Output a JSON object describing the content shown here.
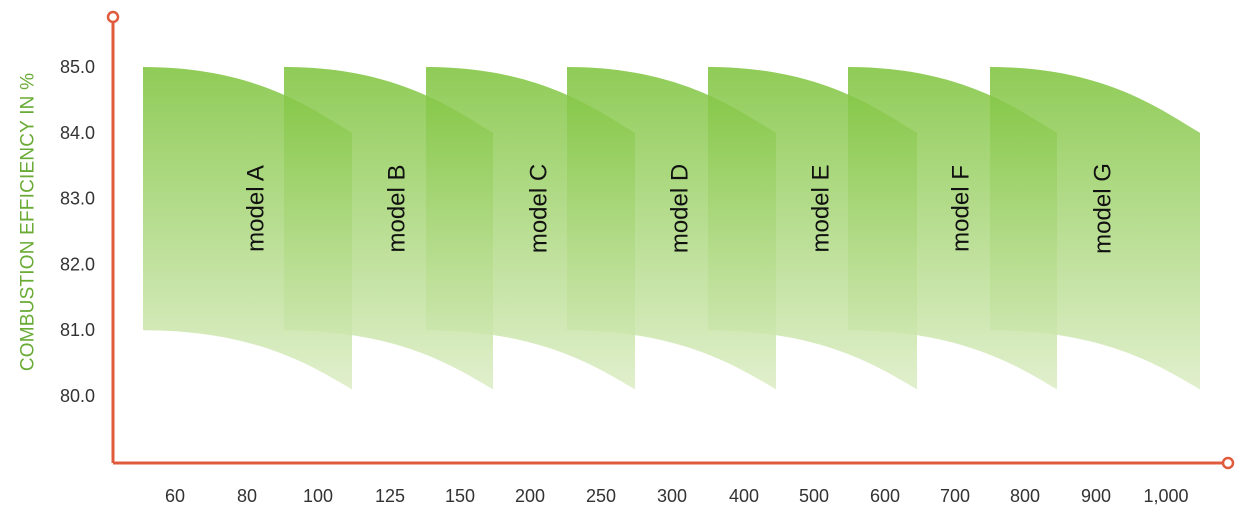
{
  "chart_data": {
    "type": "area",
    "title": "",
    "ylabel": "COMBUSTION EFFICIENCY IN %",
    "xlabel": "",
    "x_categories": [
      "60",
      "80",
      "100",
      "125",
      "150",
      "200",
      "250",
      "300",
      "400",
      "500",
      "600",
      "700",
      "800",
      "900",
      "1,000"
    ],
    "y_ticks": [
      "85.0",
      "84.0",
      "83.0",
      "82.0",
      "81.0",
      "80.0"
    ],
    "ylim": [
      79.0,
      86.0
    ],
    "series": [
      {
        "name": "model A",
        "x_start": "60",
        "x_end": "100",
        "efficiency_max_start": 85.0,
        "efficiency_max_end": 84.0,
        "efficiency_min_start": 81.0,
        "efficiency_min_end": 80.1
      },
      {
        "name": "model B",
        "x_start": "100",
        "x_end": "150",
        "efficiency_max_start": 85.0,
        "efficiency_max_end": 84.0,
        "efficiency_min_start": 81.0,
        "efficiency_min_end": 80.1
      },
      {
        "name": "model C",
        "x_start": "150",
        "x_end": "250",
        "efficiency_max_start": 85.0,
        "efficiency_max_end": 84.0,
        "efficiency_min_start": 81.0,
        "efficiency_min_end": 80.1
      },
      {
        "name": "model D",
        "x_start": "250",
        "x_end": "400",
        "efficiency_max_start": 85.0,
        "efficiency_max_end": 84.0,
        "efficiency_min_start": 81.0,
        "efficiency_min_end": 80.1
      },
      {
        "name": "model E",
        "x_start": "400",
        "x_end": "600",
        "efficiency_max_start": 85.0,
        "efficiency_max_end": 84.0,
        "efficiency_min_start": 81.0,
        "efficiency_min_end": 80.1
      },
      {
        "name": "model F",
        "x_start": "600",
        "x_end": "800",
        "efficiency_max_start": 85.0,
        "efficiency_max_end": 84.0,
        "efficiency_min_start": 81.0,
        "efficiency_min_end": 80.1
      },
      {
        "name": "model G",
        "x_start": "800",
        "x_end": "1,000",
        "efficiency_max_start": 85.0,
        "efficiency_max_end": 84.0,
        "efficiency_min_start": 81.0,
        "efficiency_min_end": 80.1
      }
    ],
    "grid": false,
    "legend": "none",
    "colors": {
      "axis": "#e05a3c",
      "band_top": "#7cc33a",
      "band_bottom": "#dcedc4",
      "ylabel": "#6aab35",
      "tick_text": "#333333",
      "model_label": "#111111"
    }
  }
}
